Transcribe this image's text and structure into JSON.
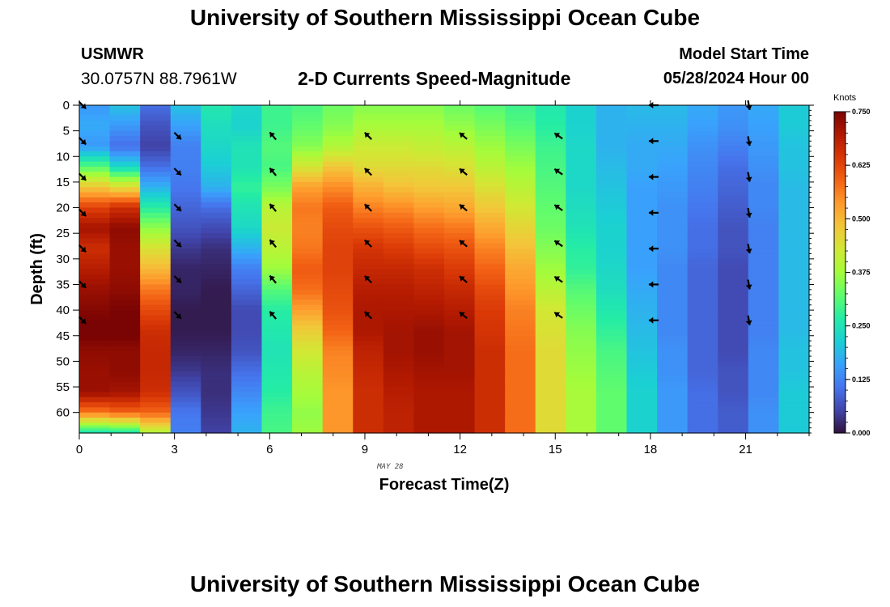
{
  "header": {
    "title": "University of Southern Mississippi Ocean Cube",
    "station": "USMWR",
    "coords": "30.0757N  88.7961W",
    "subtitle": "2-D Currents Speed-Magnitude",
    "start_label": "Model Start Time",
    "start_value": "05/28/2024 Hour 00"
  },
  "footer": {
    "title": "University of Southern Mississippi Ocean Cube"
  },
  "colors": {
    "colormap": [
      "#30123b",
      "#4145ab",
      "#4675ed",
      "#39a2fc",
      "#1bcfd4",
      "#24eca6",
      "#61fc6c",
      "#a4fc3b",
      "#d1e834",
      "#f3c63a",
      "#fe9b2d",
      "#f36315",
      "#d93806",
      "#b11901",
      "#7a0403"
    ]
  },
  "chart_data": {
    "type": "heatmap",
    "title": "2-D Currents Speed-Magnitude",
    "xlabel": "Forecast Time(Z)",
    "ylabel": "Depth (ft)",
    "date_label": "MAY 28",
    "xlim": [
      0,
      23
    ],
    "ylim": [
      0,
      64
    ],
    "x_ticks": [
      0,
      3,
      6,
      9,
      12,
      15,
      18,
      21
    ],
    "y_ticks": [
      0,
      5,
      10,
      15,
      20,
      25,
      30,
      35,
      40,
      45,
      50,
      55,
      60
    ],
    "hours": [
      0,
      1,
      2,
      3,
      4,
      5,
      6,
      7,
      8,
      9,
      10,
      11,
      12,
      13,
      14,
      15,
      16,
      17,
      18,
      19,
      20,
      21,
      22,
      23
    ],
    "depth_levels": [
      0,
      5,
      10,
      15,
      20,
      25,
      30,
      35,
      40,
      45,
      50,
      55,
      60
    ],
    "speed_knots": [
      [
        0.15,
        0.17,
        0.15,
        0.31,
        0.48,
        0.63,
        0.71,
        0.66,
        0.69,
        0.72,
        0.74,
        0.76,
        0.73,
        0.72,
        0.72,
        0.57,
        0.24
      ],
      [
        0.2,
        0.15,
        0.1,
        0.23,
        0.45,
        0.66,
        0.73,
        0.72,
        0.72,
        0.73,
        0.75,
        0.76,
        0.73,
        0.73,
        0.71,
        0.59,
        0.25
      ],
      [
        0.1,
        0.07,
        0.05,
        0.1,
        0.18,
        0.27,
        0.36,
        0.44,
        0.5,
        0.57,
        0.62,
        0.66,
        0.67,
        0.67,
        0.66,
        0.59,
        0.39
      ],
      [
        0.2,
        0.16,
        0.12,
        0.12,
        0.11,
        0.09,
        0.07,
        0.04,
        0.02,
        0.02,
        0.01,
        0.01,
        0.02,
        0.04,
        0.07,
        0.11,
        0.12
      ],
      [
        0.26,
        0.24,
        0.23,
        0.21,
        0.18,
        0.1,
        0.06,
        0.03,
        0.02,
        0.01,
        0.01,
        0.01,
        0.02,
        0.03,
        0.03,
        0.04,
        0.05
      ],
      [
        0.23,
        0.22,
        0.25,
        0.25,
        0.28,
        0.25,
        0.23,
        0.18,
        0.12,
        0.09,
        0.06,
        0.06,
        0.07,
        0.1,
        0.13,
        0.16,
        0.18
      ],
      [
        0.29,
        0.29,
        0.31,
        0.3,
        0.34,
        0.4,
        0.42,
        0.4,
        0.37,
        0.31,
        0.27,
        0.26,
        0.25,
        0.26,
        0.27,
        0.29,
        0.3
      ],
      [
        0.3,
        0.32,
        0.35,
        0.43,
        0.53,
        0.57,
        0.56,
        0.57,
        0.6,
        0.58,
        0.53,
        0.47,
        0.43,
        0.4,
        0.38,
        0.36,
        0.37
      ],
      [
        0.33,
        0.35,
        0.39,
        0.48,
        0.55,
        0.6,
        0.62,
        0.63,
        0.63,
        0.62,
        0.61,
        0.59,
        0.56,
        0.55,
        0.54,
        0.54,
        0.54
      ],
      [
        0.35,
        0.38,
        0.42,
        0.45,
        0.51,
        0.56,
        0.61,
        0.65,
        0.67,
        0.69,
        0.7,
        0.7,
        0.68,
        0.67,
        0.66,
        0.66,
        0.66
      ],
      [
        0.35,
        0.38,
        0.42,
        0.45,
        0.49,
        0.55,
        0.6,
        0.64,
        0.67,
        0.69,
        0.7,
        0.71,
        0.71,
        0.7,
        0.69,
        0.68,
        0.68
      ],
      [
        0.35,
        0.38,
        0.41,
        0.45,
        0.48,
        0.53,
        0.58,
        0.62,
        0.66,
        0.68,
        0.7,
        0.72,
        0.72,
        0.71,
        0.7,
        0.7,
        0.7
      ],
      [
        0.33,
        0.36,
        0.4,
        0.44,
        0.48,
        0.52,
        0.57,
        0.61,
        0.64,
        0.67,
        0.69,
        0.71,
        0.71,
        0.71,
        0.7,
        0.7,
        0.7
      ],
      [
        0.31,
        0.34,
        0.37,
        0.4,
        0.44,
        0.48,
        0.52,
        0.56,
        0.59,
        0.62,
        0.64,
        0.65,
        0.66,
        0.66,
        0.66,
        0.66,
        0.66
      ],
      [
        0.29,
        0.31,
        0.34,
        0.37,
        0.4,
        0.43,
        0.46,
        0.49,
        0.52,
        0.54,
        0.56,
        0.57,
        0.58,
        0.58,
        0.58,
        0.58,
        0.58
      ],
      [
        0.26,
        0.27,
        0.29,
        0.3,
        0.31,
        0.32,
        0.33,
        0.35,
        0.37,
        0.4,
        0.43,
        0.44,
        0.45,
        0.45,
        0.45,
        0.45,
        0.45
      ],
      [
        0.22,
        0.22,
        0.23,
        0.23,
        0.23,
        0.24,
        0.25,
        0.27,
        0.28,
        0.31,
        0.33,
        0.35,
        0.36,
        0.37,
        0.38,
        0.38,
        0.38
      ],
      [
        0.18,
        0.18,
        0.18,
        0.19,
        0.2,
        0.21,
        0.22,
        0.22,
        0.23,
        0.24,
        0.26,
        0.28,
        0.3,
        0.31,
        0.32,
        0.32,
        0.32
      ],
      [
        0.19,
        0.18,
        0.17,
        0.17,
        0.16,
        0.16,
        0.16,
        0.16,
        0.16,
        0.17,
        0.18,
        0.19,
        0.2,
        0.21,
        0.22,
        0.22,
        0.22
      ],
      [
        0.19,
        0.18,
        0.17,
        0.16,
        0.15,
        0.14,
        0.14,
        0.14,
        0.13,
        0.13,
        0.13,
        0.13,
        0.14,
        0.14,
        0.15,
        0.15,
        0.15
      ],
      [
        0.17,
        0.16,
        0.14,
        0.13,
        0.12,
        0.11,
        0.1,
        0.1,
        0.09,
        0.09,
        0.09,
        0.09,
        0.09,
        0.09,
        0.1,
        0.1,
        0.1
      ],
      [
        0.15,
        0.14,
        0.12,
        0.1,
        0.09,
        0.08,
        0.07,
        0.07,
        0.06,
        0.06,
        0.06,
        0.06,
        0.06,
        0.07,
        0.07,
        0.08,
        0.08
      ],
      [
        0.17,
        0.16,
        0.15,
        0.14,
        0.13,
        0.13,
        0.12,
        0.12,
        0.12,
        0.12,
        0.12,
        0.12,
        0.13,
        0.13,
        0.13,
        0.14,
        0.14
      ],
      [
        0.21,
        0.21,
        0.2,
        0.2,
        0.19,
        0.19,
        0.19,
        0.19,
        0.19,
        0.19,
        0.19,
        0.19,
        0.2,
        0.2,
        0.21,
        0.21,
        0.21
      ]
    ],
    "speed_depth_ft": [
      0,
      4,
      8,
      12,
      16,
      20,
      24,
      28,
      32,
      36,
      40,
      44,
      48,
      52,
      56,
      60,
      64
    ],
    "vectors": [
      {
        "hour": 0,
        "depths": [
          0,
          7,
          14,
          21,
          28,
          35,
          42
        ],
        "direction_deg": 135
      },
      {
        "hour": 3,
        "depths": [
          6,
          13,
          20,
          27,
          34,
          41
        ],
        "direction_deg": 135
      },
      {
        "hour": 6,
        "depths": [
          6,
          13,
          20,
          27,
          34,
          41
        ],
        "direction_deg": 320
      },
      {
        "hour": 9,
        "depths": [
          6,
          13,
          20,
          27,
          34,
          41
        ],
        "direction_deg": 315
      },
      {
        "hour": 12,
        "depths": [
          6,
          13,
          20,
          27,
          34,
          41
        ],
        "direction_deg": 310
      },
      {
        "hour": 15,
        "depths": [
          6,
          13,
          20,
          27,
          34,
          41
        ],
        "direction_deg": 305
      },
      {
        "hour": 18,
        "depths": [
          0,
          7,
          14,
          21,
          28,
          35,
          42
        ],
        "direction_deg": 270
      },
      {
        "hour": 21,
        "depths": [
          0,
          7,
          14,
          21,
          28,
          35,
          42
        ],
        "direction_deg": 170
      }
    ],
    "colorbar": {
      "label": "Knots",
      "range": [
        0,
        0.75
      ],
      "tick_values": [
        0.0,
        0.125,
        0.25,
        0.375,
        0.5,
        0.625,
        0.75
      ],
      "tick_labels": [
        "0.000",
        "0.125",
        "0.250",
        "0.375",
        "0.500",
        "0.625",
        "0.750"
      ]
    }
  }
}
